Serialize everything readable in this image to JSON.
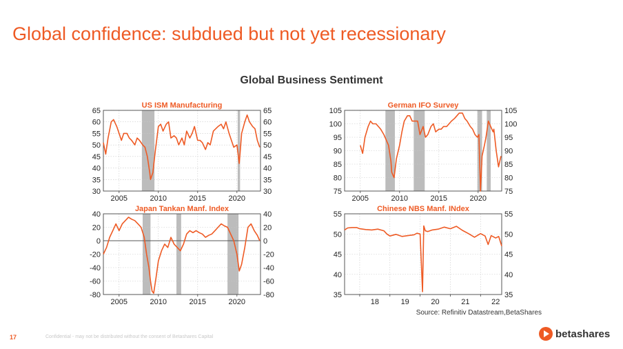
{
  "slide": {
    "title": "Global confidence: subdued but not yet recessionary",
    "chart_title": "Global Business Sentiment",
    "source": "Source: Refinitiv Datastream,BetaShares",
    "page_number": "17",
    "confidential": "Confidential - may not be distributed without the consent of Betashares Capital",
    "logo": "betashares",
    "accent_color": "#ee5a24"
  },
  "chart_data": [
    {
      "type": "line",
      "title": "US ISM Manufacturing",
      "xlim": [
        2003,
        2023
      ],
      "ylim": [
        30,
        65
      ],
      "xticks": [
        2005,
        2010,
        2015,
        2020
      ],
      "yticks": [
        30,
        35,
        40,
        45,
        50,
        55,
        60,
        65
      ],
      "xtick_labels": [
        "2005",
        "2010",
        "2015",
        "2020"
      ],
      "ytick_labels": [
        "30",
        "35",
        "40",
        "45",
        "50",
        "55",
        "60",
        "65"
      ],
      "right_axis": true,
      "shaded": [
        [
          2007.9,
          2009.5
        ],
        [
          2020.1,
          2020.4
        ]
      ],
      "series": [
        {
          "x": [
            2003.0,
            2003.3,
            2003.6,
            2004.0,
            2004.3,
            2004.7,
            2005.0,
            2005.3,
            2005.6,
            2006.0,
            2006.3,
            2006.6,
            2007.0,
            2007.3,
            2007.6,
            2008.0,
            2008.3,
            2008.6,
            2008.9,
            2009.0,
            2009.3,
            2009.6,
            2010.0,
            2010.3,
            2010.6,
            2011.0,
            2011.3,
            2011.6,
            2012.0,
            2012.3,
            2012.6,
            2013.0,
            2013.3,
            2013.6,
            2014.0,
            2014.3,
            2014.6,
            2015.0,
            2015.3,
            2015.6,
            2016.0,
            2016.3,
            2016.6,
            2017.0,
            2017.3,
            2017.6,
            2018.0,
            2018.3,
            2018.6,
            2019.0,
            2019.3,
            2019.6,
            2020.0,
            2020.3,
            2020.6,
            2021.0,
            2021.3,
            2021.6,
            2022.0,
            2022.3,
            2022.6,
            2022.9
          ],
          "y": [
            51,
            46,
            53,
            60,
            61,
            58,
            55,
            52,
            55,
            55,
            53,
            52,
            50,
            53,
            52,
            50,
            49,
            45,
            38,
            35,
            38,
            47,
            58,
            59,
            56,
            59,
            60,
            53,
            54,
            53,
            50,
            53,
            50,
            56,
            53,
            55,
            58,
            52,
            52,
            51,
            48,
            51,
            50,
            56,
            57,
            58,
            59,
            57,
            60,
            55,
            52,
            49,
            50,
            42,
            55,
            60,
            63,
            60,
            58,
            57,
            52,
            49
          ]
        }
      ]
    },
    {
      "type": "line",
      "title": "German IFO Survey",
      "xlim": [
        2003,
        2023
      ],
      "ylim": [
        75,
        105
      ],
      "xticks": [
        2005,
        2010,
        2015,
        2020
      ],
      "yticks": [
        75,
        80,
        85,
        90,
        95,
        100,
        105
      ],
      "xtick_labels": [
        "2005",
        "2010",
        "2015",
        "2020"
      ],
      "ytick_labels": [
        "75",
        "80",
        "85",
        "90",
        "95",
        "100",
        "105"
      ],
      "right_axis": true,
      "shaded": [
        [
          2008.2,
          2009.4
        ],
        [
          2011.8,
          2013.2
        ],
        [
          2019.9,
          2020.5
        ],
        [
          2021.1,
          2021.6
        ]
      ],
      "series": [
        {
          "x": [
            2005.0,
            2005.3,
            2005.6,
            2006.0,
            2006.3,
            2006.6,
            2007.0,
            2007.3,
            2007.6,
            2008.0,
            2008.3,
            2008.6,
            2008.9,
            2009.0,
            2009.3,
            2009.6,
            2010.0,
            2010.3,
            2010.6,
            2011.0,
            2011.3,
            2011.6,
            2012.0,
            2012.3,
            2012.6,
            2013.0,
            2013.3,
            2013.6,
            2014.0,
            2014.3,
            2014.6,
            2015.0,
            2015.3,
            2015.6,
            2016.0,
            2016.3,
            2016.6,
            2017.0,
            2017.3,
            2017.6,
            2018.0,
            2018.3,
            2018.6,
            2019.0,
            2019.3,
            2019.6,
            2019.9,
            2020.1,
            2020.3,
            2020.5,
            2020.8,
            2021.0,
            2021.3,
            2021.6,
            2021.9,
            2022.0,
            2022.3,
            2022.6,
            2022.9
          ],
          "y": [
            92,
            89,
            95,
            99,
            101,
            100,
            100,
            99,
            98,
            96,
            94,
            92,
            86,
            82,
            80,
            87,
            92,
            97,
            101,
            103,
            103,
            101,
            101,
            101,
            96,
            99,
            95,
            96,
            99,
            100,
            97,
            98,
            98,
            99,
            99,
            100,
            101,
            102,
            103,
            104,
            104,
            102,
            101,
            99,
            98,
            96,
            95,
            96,
            75,
            88,
            92,
            95,
            101,
            99,
            97,
            98,
            90,
            84,
            88
          ]
        }
      ]
    },
    {
      "type": "line",
      "title": "Japan Tankan Manf. Index",
      "xlim": [
        2003,
        2023
      ],
      "ylim": [
        -80,
        40
      ],
      "xticks": [
        2005,
        2010,
        2015,
        2020
      ],
      "yticks": [
        -80,
        -60,
        -40,
        -20,
        0,
        20,
        40
      ],
      "xtick_labels": [
        "2005",
        "2010",
        "2015",
        "2020"
      ],
      "ytick_labels": [
        "-80",
        "-60",
        "-40",
        "-20",
        "0",
        "20",
        "40"
      ],
      "right_axis": true,
      "zero_line": true,
      "shaded": [
        [
          2008.0,
          2009.0
        ],
        [
          2012.3,
          2012.9
        ],
        [
          2018.8,
          2020.2
        ]
      ],
      "series": [
        {
          "x": [
            2003.0,
            2003.4,
            2003.8,
            2004.2,
            2004.6,
            2005.0,
            2005.4,
            2005.8,
            2006.2,
            2006.6,
            2007.0,
            2007.4,
            2007.8,
            2008.2,
            2008.5,
            2008.8,
            2009.0,
            2009.2,
            2009.4,
            2009.7,
            2010.0,
            2010.4,
            2010.8,
            2011.2,
            2011.6,
            2012.0,
            2012.4,
            2012.8,
            2013.2,
            2013.6,
            2014.0,
            2014.4,
            2014.8,
            2015.2,
            2015.6,
            2016.0,
            2016.4,
            2016.8,
            2017.2,
            2017.6,
            2018.0,
            2018.4,
            2018.8,
            2019.2,
            2019.6,
            2020.0,
            2020.3,
            2020.6,
            2021.0,
            2021.4,
            2021.8,
            2022.2,
            2022.6,
            2022.9
          ],
          "y": [
            -20,
            -10,
            5,
            15,
            25,
            15,
            25,
            30,
            35,
            32,
            30,
            25,
            20,
            5,
            -20,
            -40,
            -60,
            -75,
            -78,
            -55,
            -30,
            -15,
            -5,
            -10,
            5,
            -5,
            -10,
            -15,
            -5,
            10,
            15,
            12,
            15,
            12,
            10,
            5,
            8,
            10,
            15,
            20,
            25,
            22,
            20,
            10,
            0,
            -20,
            -45,
            -35,
            -10,
            20,
            25,
            15,
            8,
            0
          ]
        }
      ]
    },
    {
      "type": "line",
      "title": "Chinese NBS Manf. INdex",
      "xlim": [
        2017.5,
        2022.7
      ],
      "ylim": [
        35,
        55
      ],
      "xticks": [
        2018,
        2019,
        2020,
        2021,
        2022
      ],
      "yticks": [
        35,
        40,
        45,
        50,
        55
      ],
      "xtick_labels": [
        "18",
        "19",
        "20",
        "21",
        "22"
      ],
      "ytick_labels": [
        "35",
        "40",
        "45",
        "50",
        "55"
      ],
      "right_axis": true,
      "label_mid_year": true,
      "shaded": [],
      "series": [
        {
          "x": [
            2017.5,
            2017.6,
            2017.75,
            2017.9,
            2018.0,
            2018.2,
            2018.4,
            2018.6,
            2018.8,
            2018.9,
            2019.0,
            2019.2,
            2019.4,
            2019.6,
            2019.8,
            2019.9,
            2020.0,
            2020.08,
            2020.12,
            2020.17,
            2020.25,
            2020.4,
            2020.6,
            2020.8,
            2021.0,
            2021.2,
            2021.4,
            2021.6,
            2021.8,
            2022.0,
            2022.15,
            2022.25,
            2022.35,
            2022.5,
            2022.6,
            2022.7
          ],
          "y": [
            51.0,
            51.5,
            51.6,
            51.6,
            51.3,
            51.1,
            51.0,
            51.2,
            50.8,
            50.0,
            49.5,
            49.9,
            49.4,
            49.6,
            49.8,
            50.2,
            50.0,
            35.7,
            52.0,
            50.8,
            50.6,
            51.0,
            51.2,
            51.7,
            51.3,
            51.9,
            50.9,
            50.1,
            49.2,
            50.1,
            49.5,
            47.4,
            49.6,
            49.0,
            49.4,
            47.0
          ]
        }
      ]
    }
  ]
}
